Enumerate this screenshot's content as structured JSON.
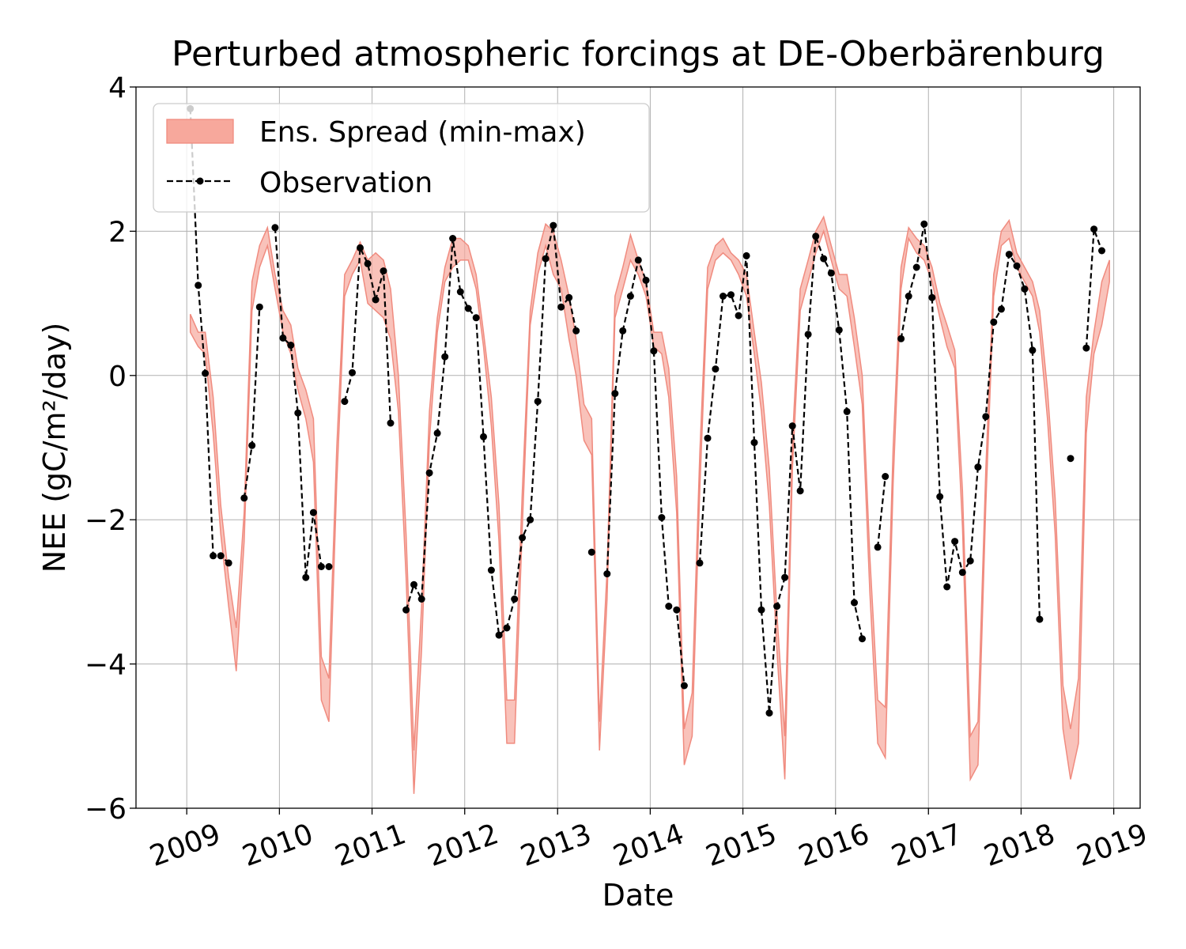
{
  "chart_data": {
    "type": "line",
    "title": "Perturbed atmospheric forcings at DE-Oberbärenburg",
    "xlabel": "Date",
    "ylabel": "NEE  (gC/m²/day)",
    "xlim": [
      "2008-06-15",
      "2019-04-15"
    ],
    "ylim": [
      -6,
      4
    ],
    "xticks": [
      "2009",
      "2010",
      "2011",
      "2012",
      "2013",
      "2014",
      "2015",
      "2016",
      "2017",
      "2018",
      "2019"
    ],
    "yticks": [
      "−6",
      "−4",
      "−2",
      "0",
      "2",
      "4"
    ],
    "grid": true,
    "legend": {
      "placement": "top-left",
      "entries": [
        "Ens. Spread (min-max)",
        "Observation"
      ]
    },
    "colors": {
      "band_fill": "#f7a89c",
      "band_edge": "#f08b7f",
      "observation": "#000000"
    },
    "band": {
      "name": "Ens. Spread (min-max)",
      "x": [
        "2009-01-15",
        "2009-02-15",
        "2009-03-15",
        "2009-04-15",
        "2009-05-15",
        "2009-06-15",
        "2009-07-15",
        "2009-08-15",
        "2009-09-15",
        "2009-10-15",
        "2009-11-15",
        "2009-12-15",
        "2010-01-15",
        "2010-02-15",
        "2010-03-15",
        "2010-04-15",
        "2010-05-15",
        "2010-06-15",
        "2010-07-15",
        "2010-08-15",
        "2010-09-15",
        "2010-10-15",
        "2010-11-15",
        "2010-12-15",
        "2011-01-15",
        "2011-02-15",
        "2011-03-15",
        "2011-04-15",
        "2011-05-15",
        "2011-06-15",
        "2011-07-15",
        "2011-08-15",
        "2011-09-15",
        "2011-10-15",
        "2011-11-15",
        "2011-12-15",
        "2012-01-15",
        "2012-02-15",
        "2012-03-15",
        "2012-04-15",
        "2012-05-15",
        "2012-06-15",
        "2012-07-15",
        "2012-08-15",
        "2012-09-15",
        "2012-10-15",
        "2012-11-15",
        "2012-12-15",
        "2013-01-15",
        "2013-02-15",
        "2013-03-15",
        "2013-04-15",
        "2013-05-15",
        "2013-06-15",
        "2013-07-15",
        "2013-08-15",
        "2013-09-15",
        "2013-10-15",
        "2013-11-15",
        "2013-12-15",
        "2014-01-15",
        "2014-02-15",
        "2014-03-15",
        "2014-04-15",
        "2014-05-15",
        "2014-06-15",
        "2014-07-15",
        "2014-08-15",
        "2014-09-15",
        "2014-10-15",
        "2014-11-15",
        "2014-12-15",
        "2015-01-15",
        "2015-02-15",
        "2015-03-15",
        "2015-04-15",
        "2015-05-15",
        "2015-06-15",
        "2015-07-15",
        "2015-08-15",
        "2015-09-15",
        "2015-10-15",
        "2015-11-15",
        "2015-12-15",
        "2016-01-15",
        "2016-02-15",
        "2016-03-15",
        "2016-04-15",
        "2016-05-15",
        "2016-06-15",
        "2016-07-15",
        "2016-08-15",
        "2016-09-15",
        "2016-10-15",
        "2016-11-15",
        "2016-12-15",
        "2017-01-15",
        "2017-02-15",
        "2017-03-15",
        "2017-04-15",
        "2017-05-15",
        "2017-06-15",
        "2017-07-15",
        "2017-08-15",
        "2017-09-15",
        "2017-10-15",
        "2017-11-15",
        "2017-12-15",
        "2018-01-15",
        "2018-02-15",
        "2018-03-15",
        "2018-04-15",
        "2018-05-15",
        "2018-06-15",
        "2018-07-15",
        "2018-08-15",
        "2018-09-15",
        "2018-10-15",
        "2018-11-15",
        "2018-12-15"
      ],
      "min": [
        0.6,
        0.4,
        0.3,
        -0.8,
        -2.2,
        -3.2,
        -4.1,
        -2.3,
        0.9,
        1.5,
        1.8,
        1.2,
        0.6,
        0.3,
        -0.2,
        -0.6,
        -1.2,
        -4.5,
        -4.8,
        -1.5,
        1.1,
        1.4,
        1.6,
        1.0,
        0.9,
        0.8,
        0.5,
        -0.5,
        -2.8,
        -5.8,
        -3.8,
        -0.9,
        0.6,
        1.3,
        1.5,
        1.6,
        1.6,
        1.2,
        0.4,
        -0.7,
        -2.3,
        -5.1,
        -5.1,
        -2.1,
        0.7,
        1.4,
        1.8,
        1.4,
        1.2,
        0.5,
        0.0,
        -0.9,
        -1.1,
        -5.2,
        -3.1,
        0.8,
        1.2,
        1.6,
        1.4,
        1.1,
        0.4,
        0.3,
        -0.3,
        -1.9,
        -5.4,
        -5.0,
        -1.6,
        1.2,
        1.6,
        1.7,
        1.6,
        1.4,
        1.1,
        0.3,
        -0.5,
        -1.8,
        -3.8,
        -5.6,
        -1.3,
        0.9,
        1.3,
        1.7,
        2.0,
        1.6,
        1.2,
        1.1,
        0.4,
        -0.4,
        -3.0,
        -5.1,
        -5.3,
        -1.5,
        1.2,
        1.9,
        1.7,
        1.6,
        1.3,
        0.8,
        0.4,
        0.1,
        -2.1,
        -5.6,
        -5.4,
        -1.8,
        1.1,
        1.8,
        1.9,
        1.5,
        1.3,
        1.1,
        0.6,
        -0.6,
        -2.2,
        -4.9,
        -5.6,
        -5.1,
        -0.8,
        0.3,
        0.7,
        1.3
      ],
      "max": [
        0.85,
        0.6,
        0.6,
        -0.3,
        -1.8,
        -2.8,
        -3.5,
        -1.9,
        1.3,
        1.8,
        2.05,
        1.4,
        0.9,
        0.7,
        0.1,
        -0.2,
        -0.6,
        -3.9,
        -4.2,
        -1.0,
        1.4,
        1.6,
        1.85,
        1.6,
        1.7,
        1.6,
        1.2,
        0.0,
        -2.2,
        -5.2,
        -3.2,
        -0.5,
        0.8,
        1.5,
        1.9,
        1.9,
        1.8,
        1.4,
        0.6,
        -0.3,
        -1.8,
        -4.5,
        -4.5,
        -1.6,
        0.9,
        1.7,
        2.1,
        2.0,
        1.6,
        1.1,
        0.5,
        -0.4,
        -0.6,
        -4.8,
        -2.7,
        1.1,
        1.5,
        1.95,
        1.6,
        1.3,
        0.6,
        0.6,
        0.1,
        -1.4,
        -4.9,
        -4.4,
        -1.1,
        1.5,
        1.8,
        1.9,
        1.7,
        1.6,
        1.4,
        0.6,
        -0.1,
        -1.3,
        -3.3,
        -5.0,
        -0.9,
        1.2,
        1.6,
        2.0,
        2.2,
        1.8,
        1.4,
        1.4,
        0.8,
        0.0,
        -2.5,
        -4.5,
        -4.6,
        -1.0,
        1.5,
        2.05,
        1.9,
        1.8,
        1.5,
        1.0,
        0.7,
        0.35,
        -1.6,
        -5.0,
        -4.8,
        -1.3,
        1.4,
        2.0,
        2.15,
        1.7,
        1.5,
        1.3,
        0.9,
        -0.2,
        -1.7,
        -4.3,
        -4.9,
        -4.2,
        -0.3,
        0.6,
        1.3,
        1.6
      ]
    },
    "series": [
      {
        "name": "Observation",
        "segments": [
          {
            "x": [
              "2009-01-15",
              "2009-02-15",
              "2009-03-15",
              "2009-04-15",
              "2009-05-15",
              "2009-06-15",
              "2009-07-15",
              "2009-08-15",
              "2009-09-15",
              "2009-10-15",
              "2009-11-15",
              "2009-12-15",
              "2010-01-15",
              "2010-02-15",
              "2010-03-15",
              "2010-04-15",
              "2010-05-15",
              "2010-06-15",
              "2010-07-15",
              "2010-08-15",
              "2010-09-15",
              "2010-10-15",
              "2010-11-15",
              "2010-12-15",
              "2011-01-15",
              "2011-02-15",
              "2011-03-15"
            ],
            "y": [
              3.7,
              1.25,
              0.03,
              -2.5,
              -2.5,
              -2.6,
              null,
              -1.7,
              -0.97,
              0.95,
              null,
              2.05,
              0.52,
              0.42,
              -0.52,
              -2.8,
              -1.9,
              -2.65,
              -2.65,
              null,
              -0.36,
              0.04,
              1.77,
              1.55,
              1.05,
              1.45,
              -0.66
            ]
          },
          {
            "x": [
              "2011-05-15",
              "2011-06-15",
              "2011-07-15",
              "2011-08-15",
              "2011-09-15",
              "2011-10-15",
              "2011-11-15",
              "2011-12-15",
              "2012-01-15",
              "2012-02-15",
              "2012-03-15",
              "2012-04-15",
              "2012-05-15",
              "2012-06-15",
              "2012-07-15",
              "2012-08-15",
              "2012-09-15",
              "2012-10-15",
              "2012-11-15",
              "2012-12-15",
              "2013-01-15",
              "2013-02-15",
              "2013-03-15"
            ],
            "y": [
              -3.25,
              -2.9,
              -3.1,
              -1.35,
              -0.8,
              0.26,
              1.9,
              1.16,
              0.93,
              0.8,
              -0.85,
              -2.7,
              -3.6,
              -3.5,
              -3.1,
              -2.25,
              -2.0,
              -0.36,
              1.62,
              2.08,
              0.95,
              1.08,
              0.62
            ]
          },
          {
            "x": [
              "2013-05-15"
            ],
            "y": [
              -2.45
            ]
          },
          {
            "x": [
              "2013-07-15",
              "2013-08-15",
              "2013-09-15",
              "2013-10-15",
              "2013-11-15",
              "2013-12-15",
              "2014-01-15",
              "2014-02-15",
              "2014-03-15",
              "2014-04-15",
              "2014-05-15",
              "2014-06-15"
            ],
            "y": [
              -2.75,
              -0.25,
              0.62,
              1.1,
              1.6,
              1.32,
              0.34,
              -1.97,
              -3.2,
              -3.25,
              -4.3,
              null
            ]
          },
          {
            "x": [
              "2014-07-15",
              "2014-08-15",
              "2014-09-15",
              "2014-10-15",
              "2014-11-15",
              "2014-12-15",
              "2015-01-15",
              "2015-02-15",
              "2015-03-15",
              "2015-04-15",
              "2015-05-15",
              "2015-06-15",
              "2015-07-15",
              "2015-08-15",
              "2015-09-15",
              "2015-10-15",
              "2015-11-15",
              "2015-12-15",
              "2016-01-15",
              "2016-02-15",
              "2016-03-15",
              "2016-04-15",
              "2016-05-15"
            ],
            "y": [
              -2.6,
              -0.87,
              0.09,
              1.1,
              1.12,
              0.83,
              1.66,
              -0.93,
              -3.25,
              -4.68,
              -3.2,
              -2.8,
              -0.7,
              -1.6,
              0.57,
              1.93,
              1.62,
              1.42,
              0.63,
              -0.5,
              -3.15,
              -3.65,
              null
            ]
          },
          {
            "x": [
              "2016-06-15",
              "2016-07-15"
            ],
            "y": [
              -2.38,
              -1.4
            ]
          },
          {
            "x": [
              "2016-09-15",
              "2016-10-15",
              "2016-11-15",
              "2016-12-15",
              "2017-01-15",
              "2017-02-15",
              "2017-03-15",
              "2017-04-15",
              "2017-05-15",
              "2017-06-15",
              "2017-07-15",
              "2017-08-15",
              "2017-09-15",
              "2017-10-15",
              "2017-11-15",
              "2017-12-15",
              "2018-01-15",
              "2018-02-15",
              "2018-03-15",
              "2018-04-15"
            ],
            "y": [
              0.51,
              1.1,
              1.5,
              2.1,
              1.08,
              -1.68,
              -2.93,
              -2.3,
              -2.73,
              -2.57,
              -1.27,
              -0.57,
              0.74,
              0.92,
              1.68,
              1.52,
              1.2,
              0.35,
              -3.38,
              null
            ]
          },
          {
            "x": [
              "2018-07-15"
            ],
            "y": [
              -1.15
            ]
          },
          {
            "x": [
              "2018-09-15",
              "2018-10-15",
              "2018-11-15"
            ],
            "y": [
              0.38,
              2.03,
              1.73
            ]
          }
        ]
      }
    ]
  }
}
